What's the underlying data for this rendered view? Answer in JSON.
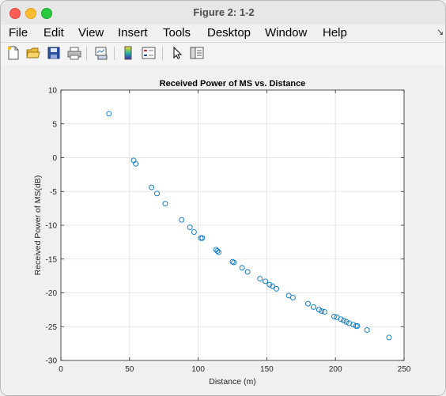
{
  "window": {
    "title": "Figure 2: 1-2"
  },
  "menu": {
    "items": [
      "File",
      "Edit",
      "View",
      "Insert",
      "Tools",
      "Desktop",
      "Window",
      "Help"
    ]
  },
  "toolbar": {
    "icons": [
      "new-figure-icon",
      "open-file-icon",
      "save-icon",
      "print-icon",
      "link-plot-icon",
      "colorbar-icon",
      "legend-icon",
      "pointer-icon",
      "property-inspector-icon"
    ]
  },
  "chart_data": {
    "type": "scatter",
    "title": "Received Power of MS vs. Distance",
    "xlabel": "Distance (m)",
    "ylabel": "Received Power of MS(dB)",
    "xlim": [
      0,
      250
    ],
    "ylim": [
      -30,
      10
    ],
    "xticks": [
      0,
      50,
      100,
      150,
      200,
      250
    ],
    "yticks": [
      10,
      5,
      0,
      -5,
      -10,
      -15,
      -20,
      -25,
      -30
    ],
    "grid": true,
    "marker_color": "#0072bd",
    "points": [
      [
        35,
        6.5
      ],
      [
        53,
        -0.4
      ],
      [
        54.5,
        -0.9
      ],
      [
        66,
        -4.4
      ],
      [
        70,
        -5.3
      ],
      [
        76,
        -6.8
      ],
      [
        88,
        -9.2
      ],
      [
        94,
        -10.3
      ],
      [
        97,
        -11.0
      ],
      [
        102,
        -11.9
      ],
      [
        103,
        -11.9
      ],
      [
        113,
        -13.6
      ],
      [
        114,
        -13.8
      ],
      [
        115,
        -14.0
      ],
      [
        125,
        -15.4
      ],
      [
        126,
        -15.5
      ],
      [
        132,
        -16.3
      ],
      [
        136,
        -16.9
      ],
      [
        145,
        -17.9
      ],
      [
        149,
        -18.3
      ],
      [
        152,
        -18.8
      ],
      [
        154,
        -19.0
      ],
      [
        157,
        -19.4
      ],
      [
        166,
        -20.4
      ],
      [
        169,
        -20.7
      ],
      [
        180,
        -21.6
      ],
      [
        184,
        -22.1
      ],
      [
        188,
        -22.5
      ],
      [
        190,
        -22.7
      ],
      [
        192,
        -22.8
      ],
      [
        199,
        -23.5
      ],
      [
        201,
        -23.6
      ],
      [
        204,
        -23.9
      ],
      [
        206,
        -24.1
      ],
      [
        208,
        -24.3
      ],
      [
        210,
        -24.5
      ],
      [
        213,
        -24.7
      ],
      [
        215,
        -24.9
      ],
      [
        216,
        -24.9
      ],
      [
        223,
        -25.5
      ],
      [
        239,
        -26.6
      ]
    ]
  }
}
